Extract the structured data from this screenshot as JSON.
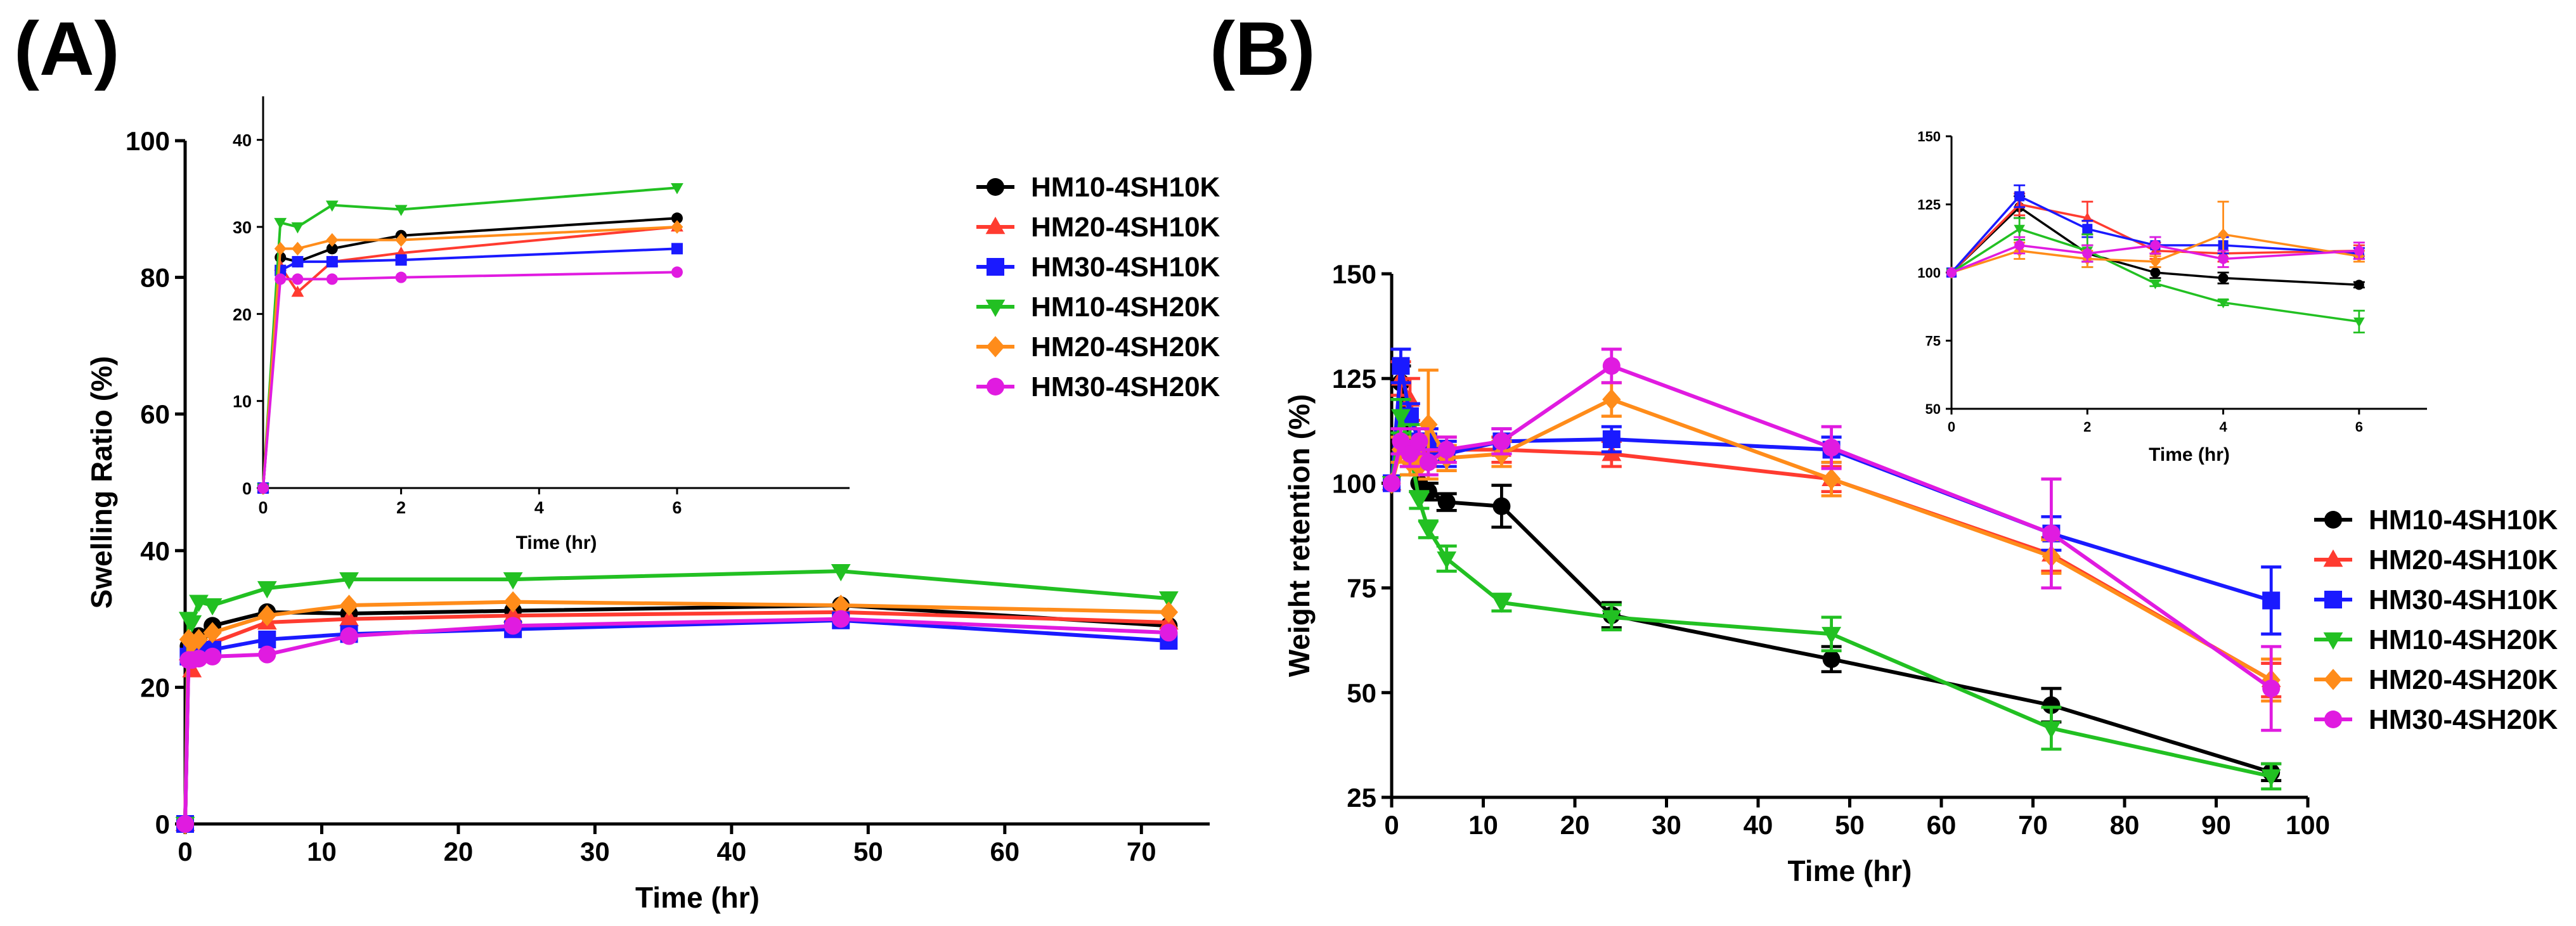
{
  "chart_data": [
    {
      "panel_label": "(A)",
      "type": "line",
      "xlabel": "Time (hr)",
      "ylabel": "Swelling Ratio (%)",
      "xlim": [
        0,
        75
      ],
      "ylim": [
        0,
        100
      ],
      "xticks": [
        0,
        10,
        20,
        30,
        40,
        50,
        60,
        70
      ],
      "yticks": [
        0,
        20,
        40,
        60,
        80,
        100
      ],
      "legend_placement": "top-right",
      "x": [
        0,
        0.25,
        0.5,
        1,
        2,
        6,
        12,
        24,
        48,
        72
      ],
      "series": [
        {
          "name": "HM10-4SH10K",
          "color": "#000000",
          "marker": "circle",
          "values": [
            0,
            26,
            26.5,
            27.5,
            29,
            31,
            30.8,
            31.2,
            32,
            29
          ]
        },
        {
          "name": "HM20-4SH10K",
          "color": "#ff3b30",
          "marker": "triangle-up",
          "values": [
            0,
            25,
            22.5,
            25.5,
            26.5,
            29.5,
            30,
            30.5,
            31,
            29.5
          ]
        },
        {
          "name": "HM30-4SH10K",
          "color": "#1a1aff",
          "marker": "square",
          "values": [
            0,
            24.5,
            25.5,
            25.5,
            25.5,
            27,
            27.8,
            28.5,
            29.8,
            26.8
          ]
        },
        {
          "name": "HM10-4SH20K",
          "color": "#22c022",
          "marker": "triangle-down",
          "values": [
            0,
            30,
            29.5,
            32.5,
            32,
            34.5,
            35.8,
            35.8,
            37,
            33
          ]
        },
        {
          "name": "HM20-4SH20K",
          "color": "#ff8c1a",
          "marker": "diamond",
          "values": [
            0,
            27,
            26.5,
            27,
            28,
            30.5,
            32,
            32.5,
            32,
            31
          ]
        },
        {
          "name": "HM30-4SH20K",
          "color": "#e01be0",
          "marker": "circle",
          "values": [
            0,
            24,
            24,
            24.2,
            24.5,
            24.8,
            27.5,
            29,
            30,
            28
          ]
        }
      ],
      "inset": {
        "xlabel": "Time (hr)",
        "xlim": [
          0,
          8.5
        ],
        "ylim": [
          0,
          45
        ],
        "xticks": [
          0,
          2,
          4,
          6
        ],
        "yticks": [
          0,
          10,
          20,
          30,
          40
        ],
        "x": [
          0,
          0.25,
          0.5,
          1,
          2,
          6
        ],
        "series": [
          {
            "name": "HM10-4SH10K",
            "values": [
              0,
              26.5,
              26,
              27.5,
              29,
              31
            ]
          },
          {
            "name": "HM20-4SH10K",
            "values": [
              0,
              25.5,
              22.5,
              26,
              27,
              30
            ]
          },
          {
            "name": "HM30-4SH10K",
            "values": [
              0,
              25,
              26,
              26,
              26.2,
              27.5
            ]
          },
          {
            "name": "HM10-4SH20K",
            "values": [
              0,
              30.5,
              30,
              32.5,
              32,
              34.5
            ]
          },
          {
            "name": "HM20-4SH20K",
            "values": [
              0,
              27.5,
              27.5,
              28.5,
              28.5,
              30
            ]
          },
          {
            "name": "HM30-4SH20K",
            "values": [
              0,
              24,
              24,
              24,
              24.2,
              24.8
            ]
          }
        ]
      }
    },
    {
      "panel_label": "(B)",
      "type": "line",
      "xlabel": "Time (hr)",
      "ylabel": "Weight retention (%)",
      "xlim": [
        0,
        100
      ],
      "ylim": [
        25,
        150
      ],
      "xticks": [
        0,
        10,
        20,
        30,
        40,
        50,
        60,
        70,
        80,
        90,
        100
      ],
      "yticks": [
        25,
        50,
        75,
        100,
        125,
        150
      ],
      "legend_placement": "bottom-right",
      "x": [
        0,
        1,
        2,
        3,
        4,
        6,
        12,
        24,
        48,
        72,
        96
      ],
      "series": [
        {
          "name": "HM10-4SH10K",
          "color": "#000000",
          "marker": "circle",
          "values": [
            100,
            124,
            107,
            100,
            98,
            95.5,
            94.5,
            68.5,
            58,
            47,
            31
          ],
          "errors": [
            0,
            4,
            3,
            2,
            2,
            2,
            5,
            3,
            3,
            4,
            2
          ]
        },
        {
          "name": "HM20-4SH10K",
          "color": "#ff3b30",
          "marker": "triangle-up",
          "values": [
            100,
            125,
            120,
            108,
            107,
            108,
            108,
            107,
            101,
            83,
            53
          ],
          "errors": [
            0,
            4,
            5,
            3,
            3,
            3,
            3,
            3,
            3,
            4,
            4
          ]
        },
        {
          "name": "HM30-4SH10K",
          "color": "#1a1aff",
          "marker": "square",
          "values": [
            100,
            128,
            116,
            110,
            110,
            107,
            110,
            110.5,
            108,
            88,
            72
          ],
          "errors": [
            0,
            4,
            3,
            3,
            3,
            3,
            3,
            3,
            3,
            4,
            8
          ]
        },
        {
          "name": "HM10-4SH20K",
          "color": "#22c022",
          "marker": "triangle-down",
          "values": [
            100,
            116,
            108,
            96,
            89,
            82,
            71.5,
            68,
            64,
            41.5,
            30
          ],
          "errors": [
            0,
            4,
            6,
            2,
            2,
            3,
            2,
            3,
            4,
            5,
            3
          ]
        },
        {
          "name": "HM20-4SH20K",
          "color": "#ff8c1a",
          "marker": "diamond",
          "values": [
            100,
            108,
            105,
            104,
            114,
            106,
            107,
            120,
            101,
            82.5,
            53
          ],
          "errors": [
            0,
            3,
            3,
            2,
            13,
            3,
            3,
            4,
            4,
            4,
            5
          ]
        },
        {
          "name": "HM30-4SH20K",
          "color": "#e01be0",
          "marker": "circle",
          "values": [
            100,
            110,
            107,
            110,
            105,
            108,
            110,
            128,
            108.5,
            88,
            51
          ],
          "errors": [
            0,
            3,
            3,
            3,
            3,
            3,
            3,
            4,
            5,
            13,
            10
          ]
        }
      ],
      "inset": {
        "xlabel": "Time (hr)",
        "xlim": [
          0,
          7
        ],
        "ylim": [
          50,
          150
        ],
        "xticks": [
          0,
          2,
          4,
          6
        ],
        "yticks": [
          50,
          75,
          100,
          125,
          150
        ],
        "x": [
          0,
          1,
          2,
          3,
          4,
          6
        ],
        "series": [
          {
            "name": "HM10-4SH10K",
            "values": [
              100,
              124,
              107,
              100,
              98,
              95.5
            ],
            "errors": [
              0,
              4,
              3,
              2,
              2,
              1
            ]
          },
          {
            "name": "HM20-4SH10K",
            "values": [
              100,
              125,
              120,
              108,
              107,
              108
            ],
            "errors": [
              0,
              4,
              6,
              3,
              3,
              2
            ]
          },
          {
            "name": "HM30-4SH10K",
            "values": [
              100,
              128,
              116,
              110,
              110,
              107
            ],
            "errors": [
              0,
              4,
              3,
              3,
              3,
              2
            ]
          },
          {
            "name": "HM10-4SH20K",
            "values": [
              100,
              116,
              108,
              96,
              89,
              82
            ],
            "errors": [
              0,
              4,
              6,
              1,
              1,
              4
            ]
          },
          {
            "name": "HM20-4SH20K",
            "values": [
              100,
              108,
              105,
              104,
              114,
              106
            ],
            "errors": [
              0,
              3,
              3,
              2,
              12,
              2
            ]
          },
          {
            "name": "HM30-4SH20K",
            "values": [
              100,
              110,
              107,
              110,
              105,
              108
            ],
            "errors": [
              0,
              3,
              3,
              3,
              3,
              3
            ]
          }
        ]
      }
    }
  ]
}
